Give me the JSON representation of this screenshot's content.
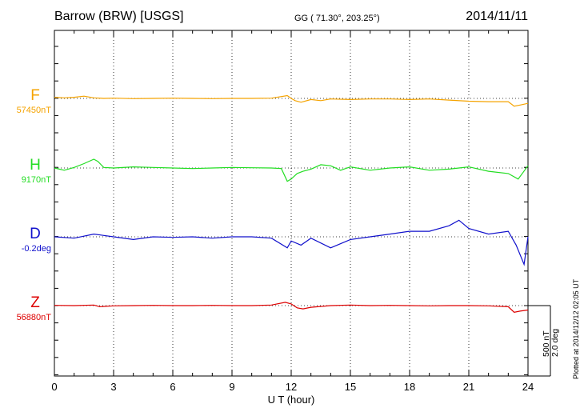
{
  "header": {
    "station": "Barrow (BRW)  [USGS]",
    "coords": "GG ( 71.30°, 203.25°)",
    "date": "2014/11/11"
  },
  "footer_note": "Plotted at 2014/12/12 02:05 UT",
  "scale": {
    "line1": "500 nT",
    "line2": "2.0 deg"
  },
  "chart_data": {
    "type": "line",
    "xlabel": "U T (hour)",
    "xlim": [
      0,
      24
    ],
    "xticks": [
      0,
      3,
      6,
      9,
      12,
      15,
      18,
      21,
      24
    ],
    "grid": "vertical dotted at 3-hour intervals",
    "scale_bar": "500 nT / 2.0 deg",
    "series": [
      {
        "name": "F",
        "baseline_label": "57450nT",
        "color": "#f5a300",
        "unit": "nT",
        "baseline": 57450,
        "x": [
          0,
          0.5,
          1,
          1.5,
          2,
          2.5,
          3,
          4,
          5,
          6,
          7,
          8,
          9,
          10,
          11,
          11.8,
          12,
          12.2,
          12.5,
          13,
          13.5,
          14,
          15,
          16,
          17,
          18,
          19,
          20,
          21,
          22,
          23,
          23.3,
          23.6,
          24
        ],
        "y": [
          57460,
          57455,
          57460,
          57470,
          57455,
          57450,
          57452,
          57448,
          57450,
          57452,
          57450,
          57448,
          57450,
          57450,
          57452,
          57475,
          57450,
          57430,
          57415,
          57440,
          57430,
          57445,
          57440,
          57445,
          57445,
          57440,
          57445,
          57435,
          57425,
          57420,
          57420,
          57380,
          57390,
          57405
        ]
      },
      {
        "name": "H",
        "baseline_label": "9170nT",
        "color": "#22dd22",
        "unit": "nT",
        "baseline": 9170,
        "x": [
          0,
          0.5,
          1,
          1.5,
          2,
          2.2,
          2.5,
          3,
          4,
          5,
          6,
          7,
          8,
          9,
          10,
          11,
          11.5,
          11.8,
          12,
          12.3,
          12.6,
          13,
          13.5,
          14,
          14.5,
          15,
          16,
          17,
          18,
          19,
          20,
          21,
          22,
          23,
          23.5,
          24
        ],
        "y": [
          9170,
          9150,
          9175,
          9210,
          9250,
          9230,
          9175,
          9170,
          9180,
          9175,
          9170,
          9165,
          9170,
          9175,
          9172,
          9170,
          9165,
          9050,
          9070,
          9120,
          9140,
          9160,
          9200,
          9190,
          9150,
          9180,
          9150,
          9170,
          9180,
          9150,
          9160,
          9180,
          9140,
          9120,
          9070,
          9190
        ]
      },
      {
        "name": "D",
        "baseline_label": "-0.2deg",
        "color": "#1111cc",
        "unit": "deg",
        "baseline": -0.2,
        "x": [
          0,
          1,
          2,
          3,
          4,
          5,
          6,
          7,
          8,
          9,
          10,
          11,
          11.8,
          12,
          12.5,
          13,
          14,
          15,
          16,
          17,
          18,
          19,
          20,
          20.5,
          21,
          22,
          23,
          23.4,
          23.8,
          24
        ],
        "y": [
          -0.2,
          -0.25,
          -0.1,
          -0.2,
          -0.3,
          -0.2,
          -0.22,
          -0.2,
          -0.25,
          -0.2,
          -0.2,
          -0.25,
          -0.6,
          -0.35,
          -0.5,
          -0.25,
          -0.6,
          -0.3,
          -0.2,
          -0.1,
          0.0,
          0.0,
          0.2,
          0.4,
          0.1,
          -0.1,
          0.0,
          -0.5,
          -1.2,
          -0.2
        ]
      },
      {
        "name": "Z",
        "baseline_label": "56880nT",
        "color": "#dd0000",
        "unit": "nT",
        "baseline": 56880,
        "x": [
          0,
          1,
          2,
          2.3,
          3,
          4,
          5,
          6,
          7,
          8,
          9,
          10,
          11,
          11.7,
          12,
          12.3,
          12.6,
          13,
          14,
          15,
          16,
          17,
          18,
          19,
          20,
          21,
          22,
          23,
          23.3,
          23.6,
          24
        ],
        "y": [
          56882,
          56880,
          56885,
          56870,
          56878,
          56880,
          56882,
          56880,
          56880,
          56882,
          56880,
          56880,
          56885,
          56910,
          56895,
          56860,
          56850,
          56865,
          56880,
          56885,
          56880,
          56882,
          56880,
          56878,
          56880,
          56880,
          56878,
          56870,
          56820,
          56830,
          56840
        ]
      }
    ]
  }
}
